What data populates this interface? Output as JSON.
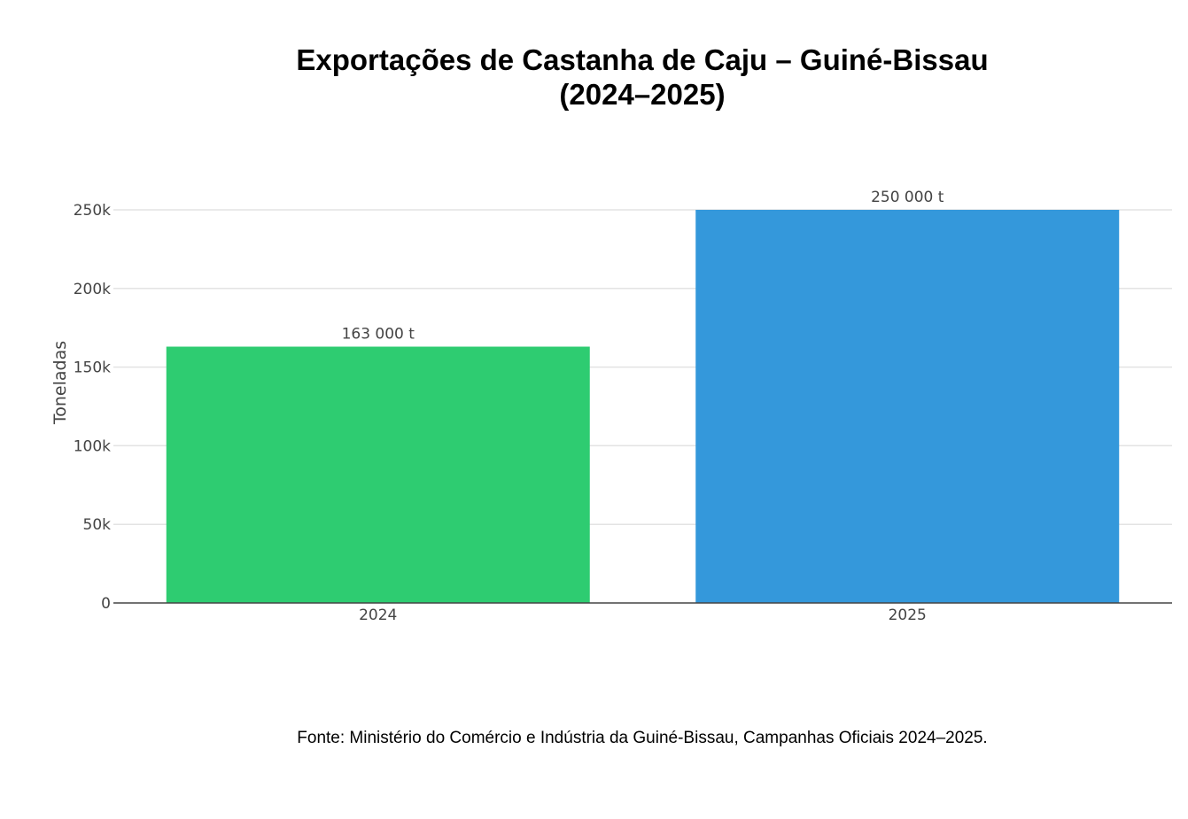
{
  "chart_data": {
    "type": "bar",
    "title_line1": "Exportações de Castanha de Caju – Guiné-Bissau",
    "title_line2": "(2024–2025)",
    "xlabel": "",
    "ylabel": "Toneladas",
    "categories": [
      "2024",
      "2025"
    ],
    "values": [
      163000,
      250000
    ],
    "data_labels": [
      "163 000 t",
      "250 000 t"
    ],
    "bar_colors": [
      "#2ecc71",
      "#3498db"
    ],
    "ylim": [
      0,
      250000
    ],
    "yticks": [
      0,
      50000,
      100000,
      150000,
      200000,
      250000
    ],
    "ytick_labels": [
      "0",
      "50k",
      "100k",
      "150k",
      "200k",
      "250k"
    ],
    "grid": true,
    "source": "Fonte: Ministério do Comércio e Indústria da Guiné-Bissau, Campanhas Oficiais 2024–2025."
  }
}
